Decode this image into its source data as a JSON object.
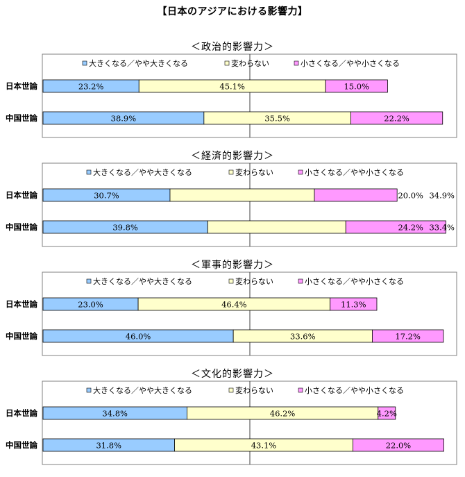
{
  "title": "【日本のアジアにおける影響力】",
  "legend": [
    "大きくなる／やや大きくなる",
    "変わらない",
    "小さくなる／やや小さくなる"
  ],
  "colors": [
    "#99CCFF",
    "#FFFFCC",
    "#FF99FF"
  ],
  "chart_data": [
    {
      "type": "bar",
      "title": "＜政治的影響力＞",
      "categories": [
        "日本世論",
        "中国世論"
      ],
      "series": [
        {
          "name": "大きくなる／やや大きくなる",
          "values": [
            23.2,
            38.9
          ],
          "labels": [
            "23.2%",
            "38.9%"
          ]
        },
        {
          "name": "変わらない",
          "values": [
            45.1,
            35.5
          ],
          "labels": [
            "45.1%",
            "35.5%"
          ]
        },
        {
          "name": "小さくなる／やや小さくなる",
          "values": [
            15.0,
            22.2
          ],
          "labels": [
            "15.0%",
            "22.2%"
          ]
        }
      ],
      "extra_labels": [
        "",
        ""
      ]
    },
    {
      "type": "bar",
      "title": "＜経済的影響力＞",
      "categories": [
        "日本世論",
        "中国世論"
      ],
      "series": [
        {
          "name": "大きくなる／やや大きくなる",
          "values": [
            30.7,
            39.8
          ],
          "labels": [
            "30.7%",
            "39.8%"
          ]
        },
        {
          "name": "変わらない",
          "values": [
            34.9,
            33.4
          ],
          "labels": [
            "",
            ""
          ]
        },
        {
          "name": "小さくなる／やや小さくなる",
          "values": [
            20.0,
            24.2
          ],
          "labels": [
            "20.0%",
            "24.2%"
          ]
        }
      ],
      "extra_labels": [
        "34.9%",
        "33.4%"
      ]
    },
    {
      "type": "bar",
      "title": "＜軍事的影響力＞",
      "categories": [
        "日本世論",
        "中国世論"
      ],
      "series": [
        {
          "name": "大きくなる／やや大きくなる",
          "values": [
            23.0,
            46.0
          ],
          "labels": [
            "23.0%",
            "46.0%"
          ]
        },
        {
          "name": "変わらない",
          "values": [
            46.4,
            33.6
          ],
          "labels": [
            "46.4%",
            "33.6%"
          ]
        },
        {
          "name": "小さくなる／やや小さくなる",
          "values": [
            11.3,
            17.2
          ],
          "labels": [
            "11.3%",
            "17.2%"
          ]
        }
      ],
      "extra_labels": [
        "",
        ""
      ]
    },
    {
      "type": "bar",
      "title": "＜文化的影響力＞",
      "categories": [
        "日本世論",
        "中国世論"
      ],
      "series": [
        {
          "name": "大きくなる／やや大きくなる",
          "values": [
            34.8,
            31.8
          ],
          "labels": [
            "34.8%",
            "31.8%"
          ]
        },
        {
          "name": "変わらない",
          "values": [
            46.2,
            43.1
          ],
          "labels": [
            "46.2%",
            "43.1%"
          ]
        },
        {
          "name": "小さくなる／やや小さくなる",
          "values": [
            4.2,
            22.0
          ],
          "labels": [
            "4.2%",
            "22.0%"
          ]
        }
      ],
      "extra_labels": [
        "",
        ""
      ]
    }
  ]
}
